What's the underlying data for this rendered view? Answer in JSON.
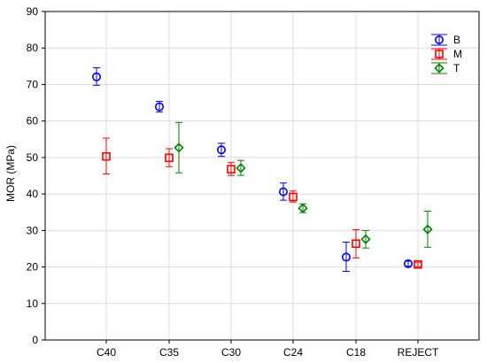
{
  "chart_data": {
    "type": "scatter",
    "title": "",
    "xlabel": "",
    "ylabel": "MOR (MPa)",
    "ylim": [
      0,
      90
    ],
    "yticks": [
      0,
      10,
      20,
      30,
      40,
      50,
      60,
      70,
      80,
      90
    ],
    "categories": [
      "C40",
      "C35",
      "C30",
      "C24",
      "C18",
      "REJECT"
    ],
    "grid": true,
    "legend_position": "top-right",
    "series": [
      {
        "name": "B",
        "marker": "circle",
        "color": "#0000ff",
        "offset": -1,
        "points": [
          {
            "category": "C40",
            "mean": 72.1,
            "low": 69.8,
            "high": 74.6
          },
          {
            "category": "C35",
            "mean": 63.9,
            "low": 62.5,
            "high": 65.4
          },
          {
            "category": "C30",
            "mean": 52.1,
            "low": 50.3,
            "high": 53.9
          },
          {
            "category": "C24",
            "mean": 40.6,
            "low": 38.3,
            "high": 43.0
          },
          {
            "category": "C18",
            "mean": 22.7,
            "low": 18.8,
            "high": 26.8
          },
          {
            "category": "REJECT",
            "mean": 20.9,
            "low": 20.2,
            "high": 21.6
          }
        ]
      },
      {
        "name": "M",
        "marker": "square",
        "color": "#ff0000",
        "offset": 0,
        "points": [
          {
            "category": "C40",
            "mean": 50.3,
            "low": 45.5,
            "high": 55.3
          },
          {
            "category": "C35",
            "mean": 49.9,
            "low": 47.5,
            "high": 52.4
          },
          {
            "category": "C30",
            "mean": 46.8,
            "low": 45.1,
            "high": 48.6
          },
          {
            "category": "C24",
            "mean": 39.2,
            "low": 37.8,
            "high": 40.8
          },
          {
            "category": "C18",
            "mean": 26.4,
            "low": 22.5,
            "high": 30.2
          },
          {
            "category": "REJECT",
            "mean": 20.7,
            "low": 20.1,
            "high": 21.3
          }
        ]
      },
      {
        "name": "T",
        "marker": "diamond",
        "color": "#008000",
        "offset": 1,
        "points": [
          {
            "category": "C35",
            "mean": 52.7,
            "low": 45.8,
            "high": 59.6
          },
          {
            "category": "C30",
            "mean": 47.1,
            "low": 45.1,
            "high": 49.2
          },
          {
            "category": "C24",
            "mean": 36.1,
            "low": 34.9,
            "high": 37.3
          },
          {
            "category": "C18",
            "mean": 27.6,
            "low": 25.2,
            "high": 30.0
          },
          {
            "category": "REJECT",
            "mean": 30.3,
            "low": 25.4,
            "high": 35.3
          }
        ]
      }
    ]
  }
}
